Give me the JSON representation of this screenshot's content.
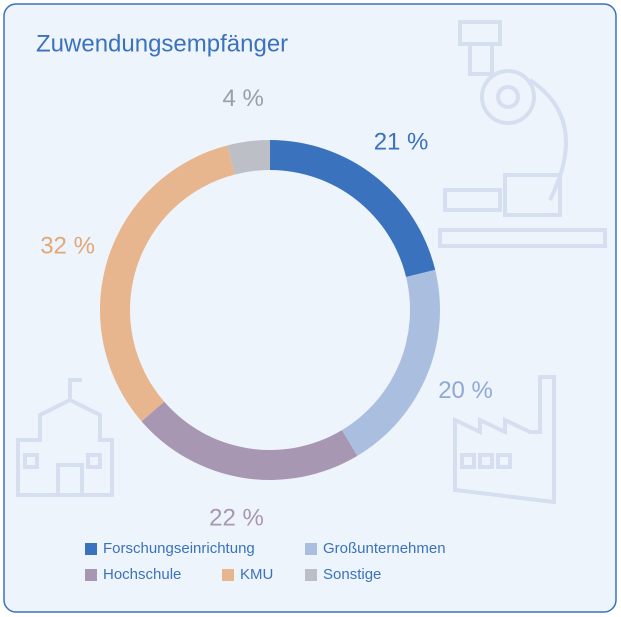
{
  "chart_data": {
    "type": "donut",
    "title": "Zuwendungsempfänger",
    "categories": [
      "Forschungseinrichtung",
      "Großunternehmen",
      "Hochschule",
      "KMU",
      "Sonstige"
    ],
    "values": [
      21,
      20,
      22,
      32,
      4
    ],
    "value_labels": [
      "21 %",
      "20 %",
      "22 %",
      "32 %",
      "4 %"
    ],
    "colors": [
      "#3a72bd",
      "#aabfe0",
      "#a897b3",
      "#e8b68e",
      "#bcbfc6"
    ],
    "label_colors": [
      "#3a72bd",
      "#8fa9d6",
      "#a897b3",
      "#e0a878",
      "#9a9ea6"
    ],
    "legend": "bottom"
  }
}
